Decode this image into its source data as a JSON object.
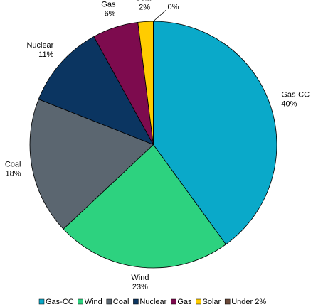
{
  "chart_data": {
    "type": "pie",
    "categories": [
      "Gas-CC",
      "Wind",
      "Coal",
      "Nuclear",
      "Gas",
      "Solar",
      "Under 2%"
    ],
    "values": [
      40,
      23,
      18,
      11,
      6,
      2,
      0
    ],
    "value_labels": [
      "40%",
      "23%",
      "18%",
      "11%",
      "6%",
      "2%",
      "0%"
    ],
    "colors": [
      "#0aa9c9",
      "#2dd27f",
      "#5b6670",
      "#0b3561",
      "#7d0b4e",
      "#ffcc00",
      "#6b4a3a"
    ],
    "legend": "bottom"
  }
}
